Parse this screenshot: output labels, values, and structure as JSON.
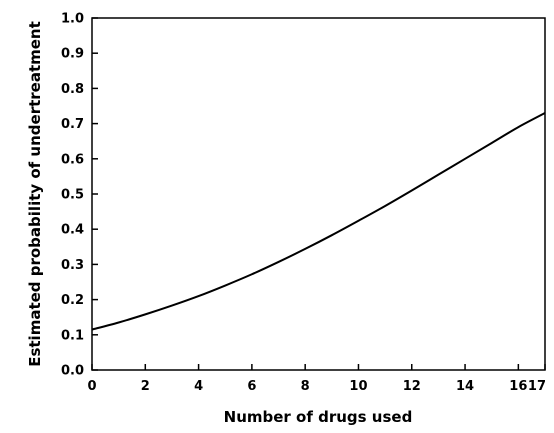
{
  "chart_data": {
    "type": "line",
    "title": "",
    "xlabel": "Number of drugs used",
    "ylabel": "Estimated probability of undertreatment",
    "xlim": [
      0,
      17
    ],
    "ylim": [
      0,
      1
    ],
    "x_ticks": [
      "0",
      "2",
      "4",
      "6",
      "8",
      "10",
      "12",
      "14",
      "16",
      "17"
    ],
    "y_ticks": [
      "0.0",
      "0.1",
      "0.2",
      "0.3",
      "0.4",
      "0.5",
      "0.6",
      "0.7",
      "0.8",
      "0.9",
      "1.0"
    ],
    "grid": false,
    "series": [
      {
        "x": [
          0,
          1,
          2,
          3,
          4,
          5,
          6,
          7,
          8,
          9,
          10,
          11,
          12,
          13,
          14,
          15,
          16,
          17
        ],
        "y": [
          0.115,
          0.135,
          0.158,
          0.183,
          0.21,
          0.24,
          0.272,
          0.307,
          0.344,
          0.383,
          0.424,
          0.466,
          0.51,
          0.555,
          0.6,
          0.645,
          0.69,
          0.73
        ],
        "color": "#000000"
      }
    ]
  }
}
